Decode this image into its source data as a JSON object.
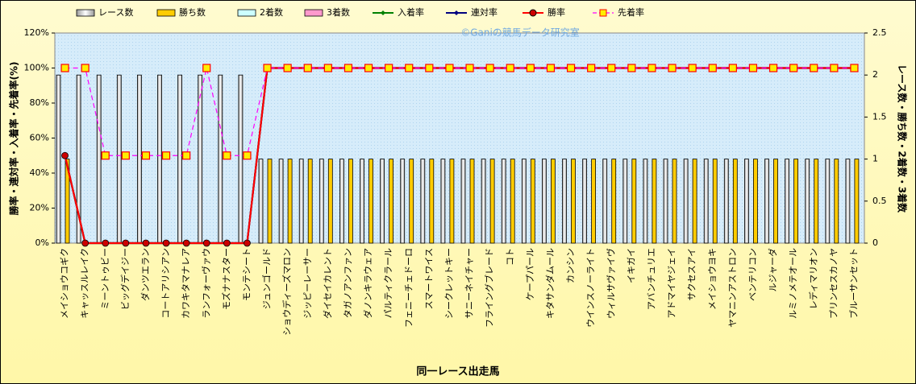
{
  "chart_data": {
    "type": "combo",
    "title": "©Ganiの競馬データ研究室",
    "x_label": "同一レース出走馬",
    "y_label": "勝率・連対率・入着率・先着率(%)",
    "y2_label": "レース数・勝ち数・2着数・3着数",
    "categories": [
      "メイショウコギク",
      "キャッスルレイク",
      "ミーントゥビー",
      "ビッグデイジー",
      "ダンツエラン",
      "コートアリシアン",
      "カワキタマナレア",
      "ランフォーヴァウ",
      "モズナナスター",
      "モンテシート",
      "ジュンゴールド",
      "ショウディーズマロン",
      "ジッピーレーサー",
      "ダイセイカレント",
      "タガノアンファン",
      "ダノンキラウェア",
      "パルティクラール",
      "フェニーチェドーロ",
      "スマートワイス",
      "シークレットキー",
      "サニーネイチャー",
      "フライングブレード",
      "コト",
      "ケープパール",
      "キタサンダムール",
      "カンシン",
      "ウインスノーライト",
      "ウィルサヴァイヴ",
      "イキガイ",
      "アバンチュリエ",
      "アドマイヤジェイ",
      "サクセスアイ",
      "メイショウヨキ",
      "ヤマニンアストロン",
      "ベンテリコン",
      "ルジャーダ",
      "ルミノメテオール",
      "レディマリオン",
      "プリンセスカノヤ",
      "ブルーサンセット"
    ],
    "ylim": [
      0,
      120
    ],
    "yticks": [
      {
        "value": 0,
        "label": "0%"
      },
      {
        "value": 20,
        "label": "20%"
      },
      {
        "value": 40,
        "label": "40%"
      },
      {
        "value": 60,
        "label": "60%"
      },
      {
        "value": 80,
        "label": "80%"
      },
      {
        "value": 100,
        "label": "100%"
      },
      {
        "value": 120,
        "label": "120%"
      }
    ],
    "y2lim": [
      0,
      2.5
    ],
    "y2ticks": [
      0,
      0.5,
      1,
      1.5,
      2,
      2.5
    ],
    "series": [
      {
        "name": "レース数",
        "type": "bar",
        "axis": "y2",
        "color": "#ffffff",
        "values": [
          2,
          2,
          2,
          2,
          2,
          2,
          2,
          2,
          2,
          2,
          1,
          1,
          1,
          1,
          1,
          1,
          1,
          1,
          1,
          1,
          1,
          1,
          1,
          1,
          1,
          1,
          1,
          1,
          1,
          1,
          1,
          1,
          1,
          1,
          1,
          1,
          1,
          1,
          1,
          1
        ]
      },
      {
        "name": "勝ち数",
        "type": "bar",
        "axis": "y2",
        "color": "#ffcc00",
        "values": [
          1,
          0,
          0,
          0,
          0,
          0,
          0,
          0,
          0,
          0,
          1,
          1,
          1,
          1,
          1,
          1,
          1,
          1,
          1,
          1,
          1,
          1,
          1,
          1,
          1,
          1,
          1,
          1,
          1,
          1,
          1,
          1,
          1,
          1,
          1,
          1,
          1,
          1,
          1,
          1
        ]
      },
      {
        "name": "2着数",
        "type": "bar",
        "axis": "y2",
        "color": "#ccffff",
        "values": [
          0,
          0,
          0,
          0,
          0,
          0,
          0,
          0,
          0,
          0,
          0,
          0,
          0,
          0,
          0,
          0,
          0,
          0,
          0,
          0,
          0,
          0,
          0,
          0,
          0,
          0,
          0,
          0,
          0,
          0,
          0,
          0,
          0,
          0,
          0,
          0,
          0,
          0,
          0,
          0
        ]
      },
      {
        "name": "3着数",
        "type": "bar",
        "axis": "y2",
        "color": "#ff99cc",
        "values": [
          0,
          0,
          0,
          0,
          0,
          0,
          0,
          0,
          0,
          0,
          0,
          0,
          0,
          0,
          0,
          0,
          0,
          0,
          0,
          0,
          0,
          0,
          0,
          0,
          0,
          0,
          0,
          0,
          0,
          0,
          0,
          0,
          0,
          0,
          0,
          0,
          0,
          0,
          0,
          0
        ]
      },
      {
        "name": "入着率",
        "type": "line",
        "marker": "diamond",
        "color": "#008000",
        "values": [
          50,
          0,
          0,
          0,
          0,
          0,
          0,
          0,
          0,
          0,
          100,
          100,
          100,
          100,
          100,
          100,
          100,
          100,
          100,
          100,
          100,
          100,
          100,
          100,
          100,
          100,
          100,
          100,
          100,
          100,
          100,
          100,
          100,
          100,
          100,
          100,
          100,
          100,
          100,
          100
        ]
      },
      {
        "name": "連対率",
        "type": "line",
        "marker": "diamond",
        "color": "#000080",
        "values": [
          50,
          0,
          0,
          0,
          0,
          0,
          0,
          0,
          0,
          0,
          100,
          100,
          100,
          100,
          100,
          100,
          100,
          100,
          100,
          100,
          100,
          100,
          100,
          100,
          100,
          100,
          100,
          100,
          100,
          100,
          100,
          100,
          100,
          100,
          100,
          100,
          100,
          100,
          100,
          100
        ]
      },
      {
        "name": "勝率",
        "type": "line",
        "marker": "circle",
        "color": "#ff0000",
        "values": [
          50,
          0,
          0,
          0,
          0,
          0,
          0,
          0,
          0,
          0,
          100,
          100,
          100,
          100,
          100,
          100,
          100,
          100,
          100,
          100,
          100,
          100,
          100,
          100,
          100,
          100,
          100,
          100,
          100,
          100,
          100,
          100,
          100,
          100,
          100,
          100,
          100,
          100,
          100,
          100
        ]
      },
      {
        "name": "先着率",
        "type": "line",
        "marker": "square",
        "dashed": true,
        "color": "#ff00ff",
        "values": [
          100,
          100,
          50,
          50,
          50,
          50,
          50,
          100,
          50,
          50,
          100,
          100,
          100,
          100,
          100,
          100,
          100,
          100,
          100,
          100,
          100,
          100,
          100,
          100,
          100,
          100,
          100,
          100,
          100,
          100,
          100,
          100,
          100,
          100,
          100,
          100,
          100,
          100,
          100,
          100
        ]
      }
    ]
  }
}
